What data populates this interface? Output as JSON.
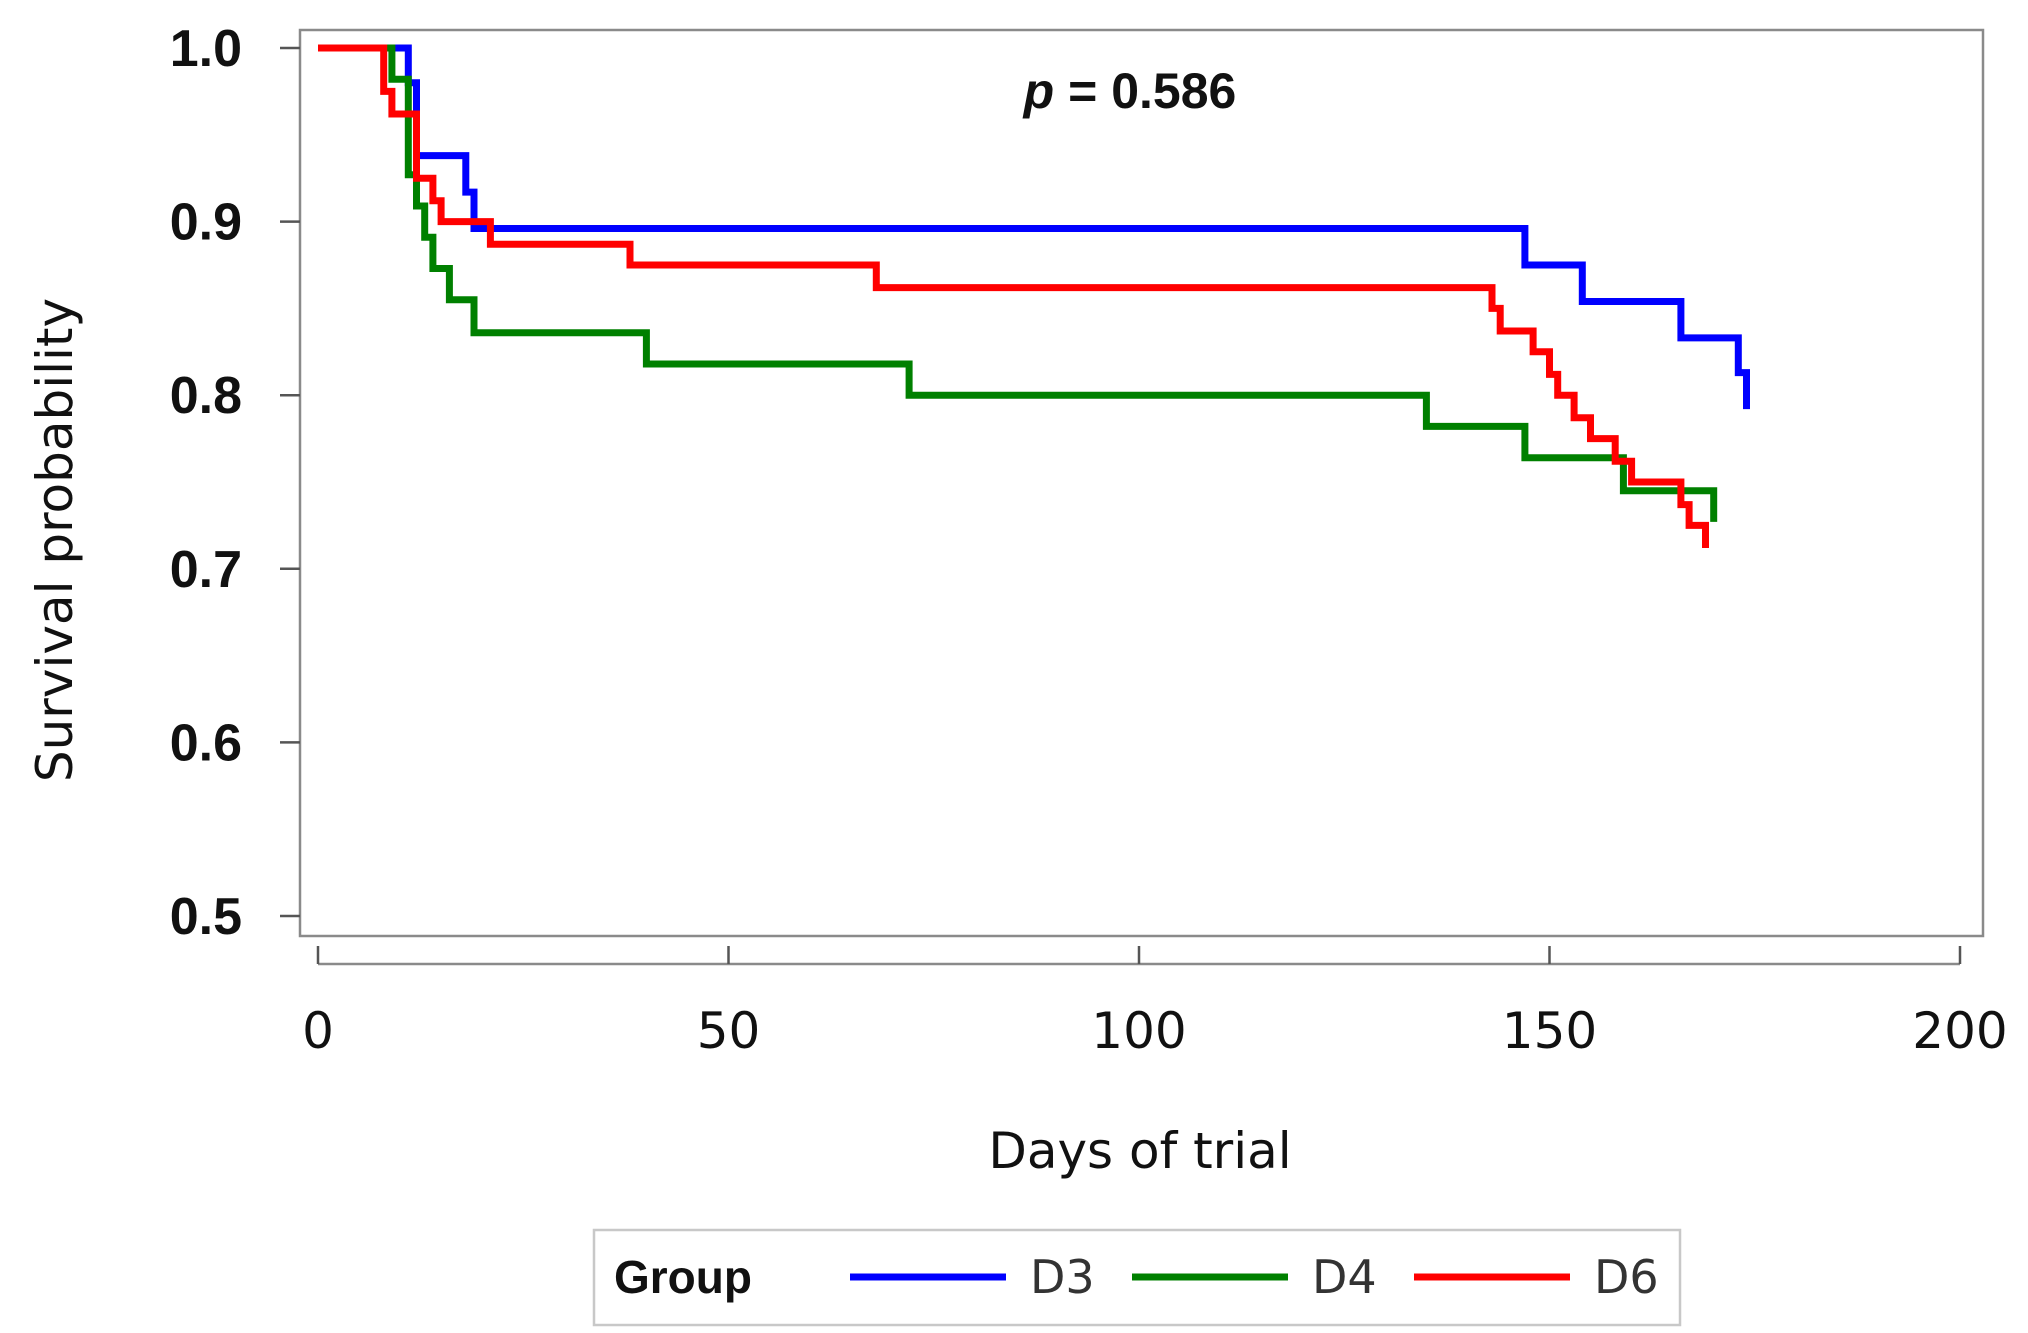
{
  "chart_data": {
    "type": "line",
    "step": true,
    "xlabel": "Days of trial",
    "ylabel": "Survival probability",
    "xlim": [
      0,
      200
    ],
    "ylim": [
      0.5,
      1.0
    ],
    "x_ticks": [
      0,
      50,
      100,
      150,
      200
    ],
    "x_tick_labels": [
      "0",
      "50",
      "100",
      "150",
      "200"
    ],
    "y_ticks": [
      0.5,
      0.6,
      0.7,
      0.8,
      0.9,
      1.0
    ],
    "y_tick_labels": [
      "0.5",
      "0.6",
      "0.7",
      "0.8",
      "0.9",
      "1.0"
    ],
    "grid": false,
    "annotation": {
      "var": "p",
      "text": " = 0.586"
    },
    "legend": {
      "title": "Group",
      "placement": "bottom"
    },
    "series": [
      {
        "name": "D3",
        "color": "#0000ff",
        "points": [
          [
            0,
            1.0
          ],
          [
            11,
            1.0
          ],
          [
            11,
            0.98
          ],
          [
            12,
            0.98
          ],
          [
            12,
            0.938
          ],
          [
            18,
            0.938
          ],
          [
            18,
            0.917
          ],
          [
            19,
            0.917
          ],
          [
            19,
            0.896
          ],
          [
            147,
            0.896
          ],
          [
            147,
            0.875
          ],
          [
            154,
            0.875
          ],
          [
            154,
            0.854
          ],
          [
            166,
            0.854
          ],
          [
            166,
            0.833
          ],
          [
            173,
            0.833
          ],
          [
            173,
            0.813
          ],
          [
            174,
            0.813
          ],
          [
            174,
            0.792
          ]
        ]
      },
      {
        "name": "D4",
        "color": "#008000",
        "points": [
          [
            0,
            1.0
          ],
          [
            9,
            1.0
          ],
          [
            9,
            0.982
          ],
          [
            11,
            0.982
          ],
          [
            11,
            0.927
          ],
          [
            12,
            0.927
          ],
          [
            12,
            0.909
          ],
          [
            13,
            0.909
          ],
          [
            13,
            0.891
          ],
          [
            14,
            0.891
          ],
          [
            14,
            0.873
          ],
          [
            16,
            0.873
          ],
          [
            16,
            0.855
          ],
          [
            19,
            0.855
          ],
          [
            19,
            0.836
          ],
          [
            40,
            0.836
          ],
          [
            40,
            0.818
          ],
          [
            72,
            0.818
          ],
          [
            72,
            0.8
          ],
          [
            135,
            0.8
          ],
          [
            135,
            0.782
          ],
          [
            147,
            0.782
          ],
          [
            147,
            0.764
          ],
          [
            159,
            0.764
          ],
          [
            159,
            0.745
          ],
          [
            170,
            0.745
          ],
          [
            170,
            0.727
          ]
        ]
      },
      {
        "name": "D6",
        "color": "#ff0000",
        "points": [
          [
            0,
            1.0
          ],
          [
            8,
            1.0
          ],
          [
            8,
            0.975
          ],
          [
            9,
            0.975
          ],
          [
            9,
            0.962
          ],
          [
            12,
            0.962
          ],
          [
            12,
            0.925
          ],
          [
            14,
            0.925
          ],
          [
            14,
            0.912
          ],
          [
            15,
            0.912
          ],
          [
            15,
            0.9
          ],
          [
            21,
            0.9
          ],
          [
            21,
            0.887
          ],
          [
            38,
            0.887
          ],
          [
            38,
            0.875
          ],
          [
            68,
            0.875
          ],
          [
            68,
            0.862
          ],
          [
            143,
            0.862
          ],
          [
            143,
            0.85
          ],
          [
            144,
            0.85
          ],
          [
            144,
            0.837
          ],
          [
            148,
            0.837
          ],
          [
            148,
            0.825
          ],
          [
            150,
            0.825
          ],
          [
            150,
            0.812
          ],
          [
            151,
            0.812
          ],
          [
            151,
            0.8
          ],
          [
            153,
            0.8
          ],
          [
            153,
            0.787
          ],
          [
            155,
            0.787
          ],
          [
            155,
            0.775
          ],
          [
            158,
            0.775
          ],
          [
            158,
            0.762
          ],
          [
            160,
            0.762
          ],
          [
            160,
            0.75
          ],
          [
            166,
            0.75
          ],
          [
            166,
            0.737
          ],
          [
            167,
            0.737
          ],
          [
            167,
            0.725
          ],
          [
            169,
            0.725
          ],
          [
            169,
            0.712
          ]
        ]
      }
    ]
  }
}
